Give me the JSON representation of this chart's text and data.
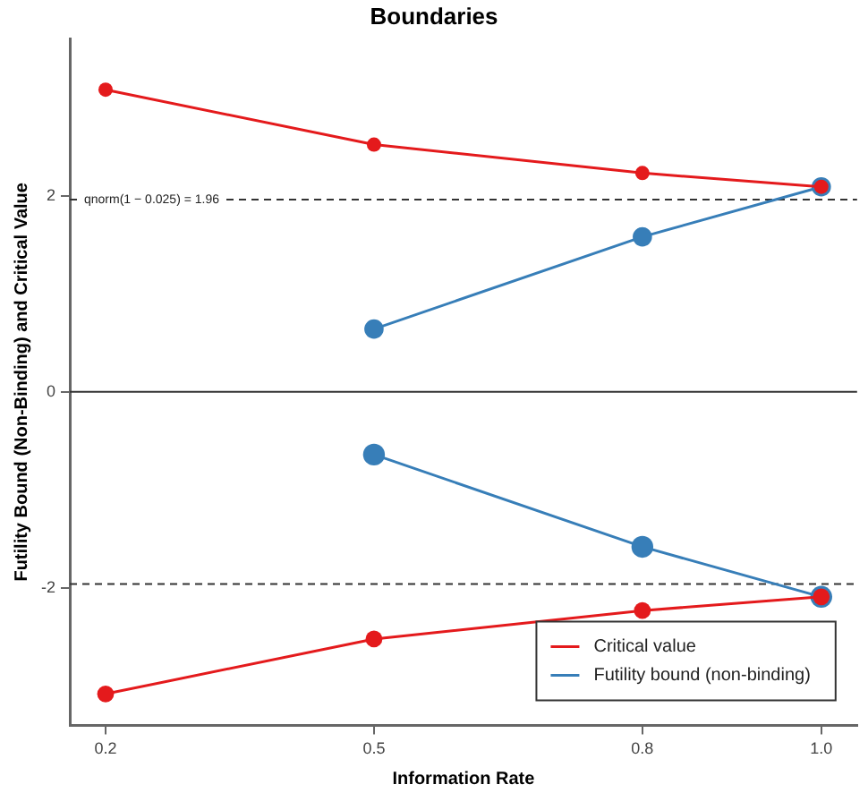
{
  "chart_data": {
    "type": "line",
    "title": "Boundaries",
    "xlabel": "Information Rate",
    "ylabel": "Futility Bound (Non-Binding) and Critical Value",
    "x": [
      0.2,
      0.5,
      0.8,
      1.0
    ],
    "series": [
      {
        "name": "Critical value",
        "color": "#e41a1c",
        "values": [
          3.08,
          2.52,
          2.23,
          2.09
        ]
      },
      {
        "color": "#e41a1c",
        "values": [
          -3.08,
          -2.52,
          -2.23,
          -2.09
        ]
      },
      {
        "name": "Futility bound (non-binding)",
        "color": "#377eb8",
        "x": [
          0.5,
          0.8,
          1.0
        ],
        "values": [
          0.64,
          1.58,
          2.09
        ]
      },
      {
        "color": "#377eb8",
        "x": [
          0.5,
          0.8,
          1.0
        ],
        "values": [
          -0.64,
          -1.58,
          -2.09
        ]
      }
    ],
    "xlim": [
      0.16,
      1.04
    ],
    "xticks": [
      0.2,
      0.5,
      0.8,
      {
        "value": 1,
        "label": "1.0"
      }
    ],
    "ylim": [
      -3.4,
      3.6
    ],
    "yticks": [
      -2,
      0,
      2
    ],
    "ref_lines": [
      {
        "axis": "y",
        "value": 1.96,
        "label": "qnorm(1 − 0.025) = 1.96",
        "line_style": "dashed",
        "color": "#333333"
      },
      {
        "axis": "y",
        "value": -1.96,
        "line_style": "dashed",
        "color": "#333333"
      },
      {
        "axis": "y",
        "value": 0,
        "line_style": "solid",
        "color": "#333333"
      }
    ],
    "grid": false,
    "legend": "bottom right",
    "marker": "circle",
    "line_style": "solid"
  }
}
